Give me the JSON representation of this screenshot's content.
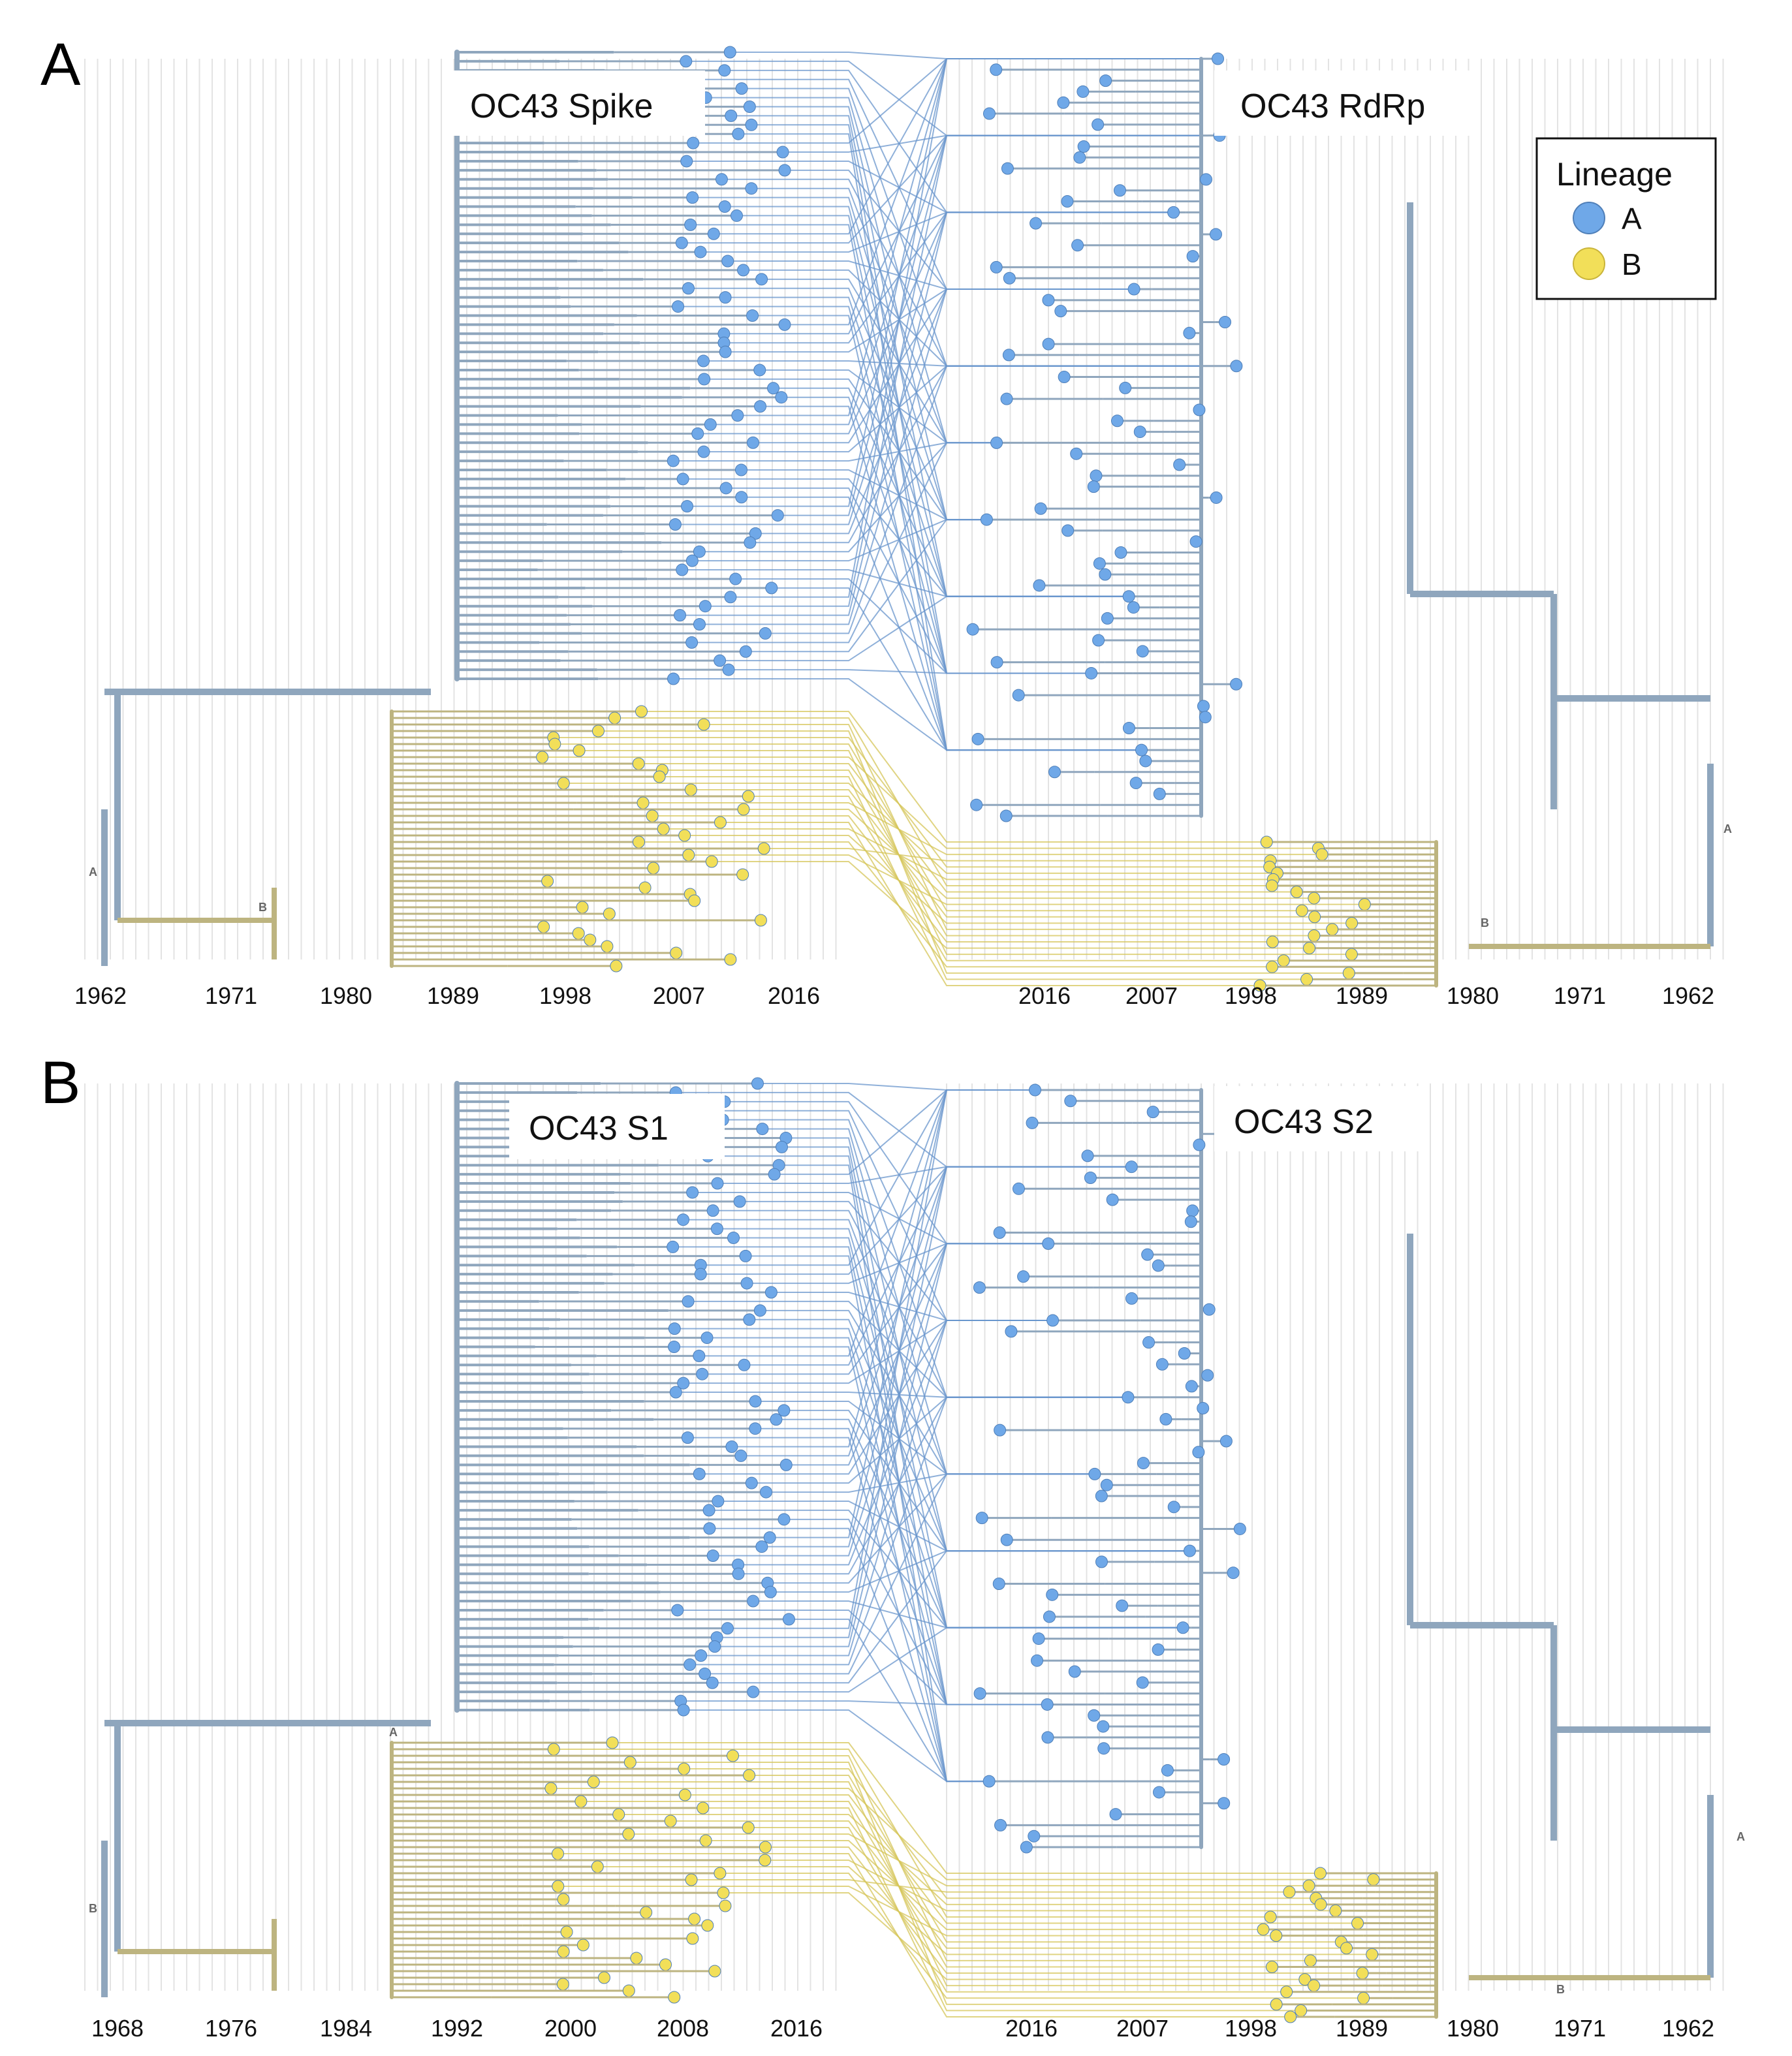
{
  "colors": {
    "lineage_a_branch": "#8fa6bd",
    "lineage_b_branch": "#bdb480",
    "lineage_a_tip": "#6fa8e8",
    "lineage_b_tip": "#f2df59",
    "link_a": "#6a95cc",
    "link_b": "#d6c65a",
    "grid": "#e3e3e3"
  },
  "legend": {
    "title": "Lineage",
    "items": [
      {
        "label": "A",
        "color": "#6fa8e8"
      },
      {
        "label": "B",
        "color": "#f2df59"
      }
    ]
  },
  "panels": [
    {
      "letter": "A",
      "left_tree": {
        "title": "OC43 Spike",
        "ticks": [
          "1962",
          "1971",
          "1980",
          "1989",
          "1998",
          "2007",
          "2016"
        ],
        "clade_labels": [
          "A",
          "B"
        ]
      },
      "right_tree": {
        "title": "OC43 RdRp",
        "ticks": [
          "2016",
          "2007",
          "1998",
          "1989",
          "1980",
          "1971",
          "1962"
        ],
        "clade_labels": [
          "A",
          "B"
        ]
      }
    },
    {
      "letter": "B",
      "left_tree": {
        "title": "OC43 S1",
        "ticks": [
          "1968",
          "1976",
          "1984",
          "1992",
          "2000",
          "2008",
          "2016"
        ],
        "clade_labels": [
          "A",
          "B"
        ]
      },
      "right_tree": {
        "title": "OC43 S2",
        "ticks": [
          "2016",
          "2007",
          "1998",
          "1989",
          "1980",
          "1971",
          "1962"
        ],
        "clade_labels": [
          "A",
          "B"
        ]
      }
    }
  ]
}
